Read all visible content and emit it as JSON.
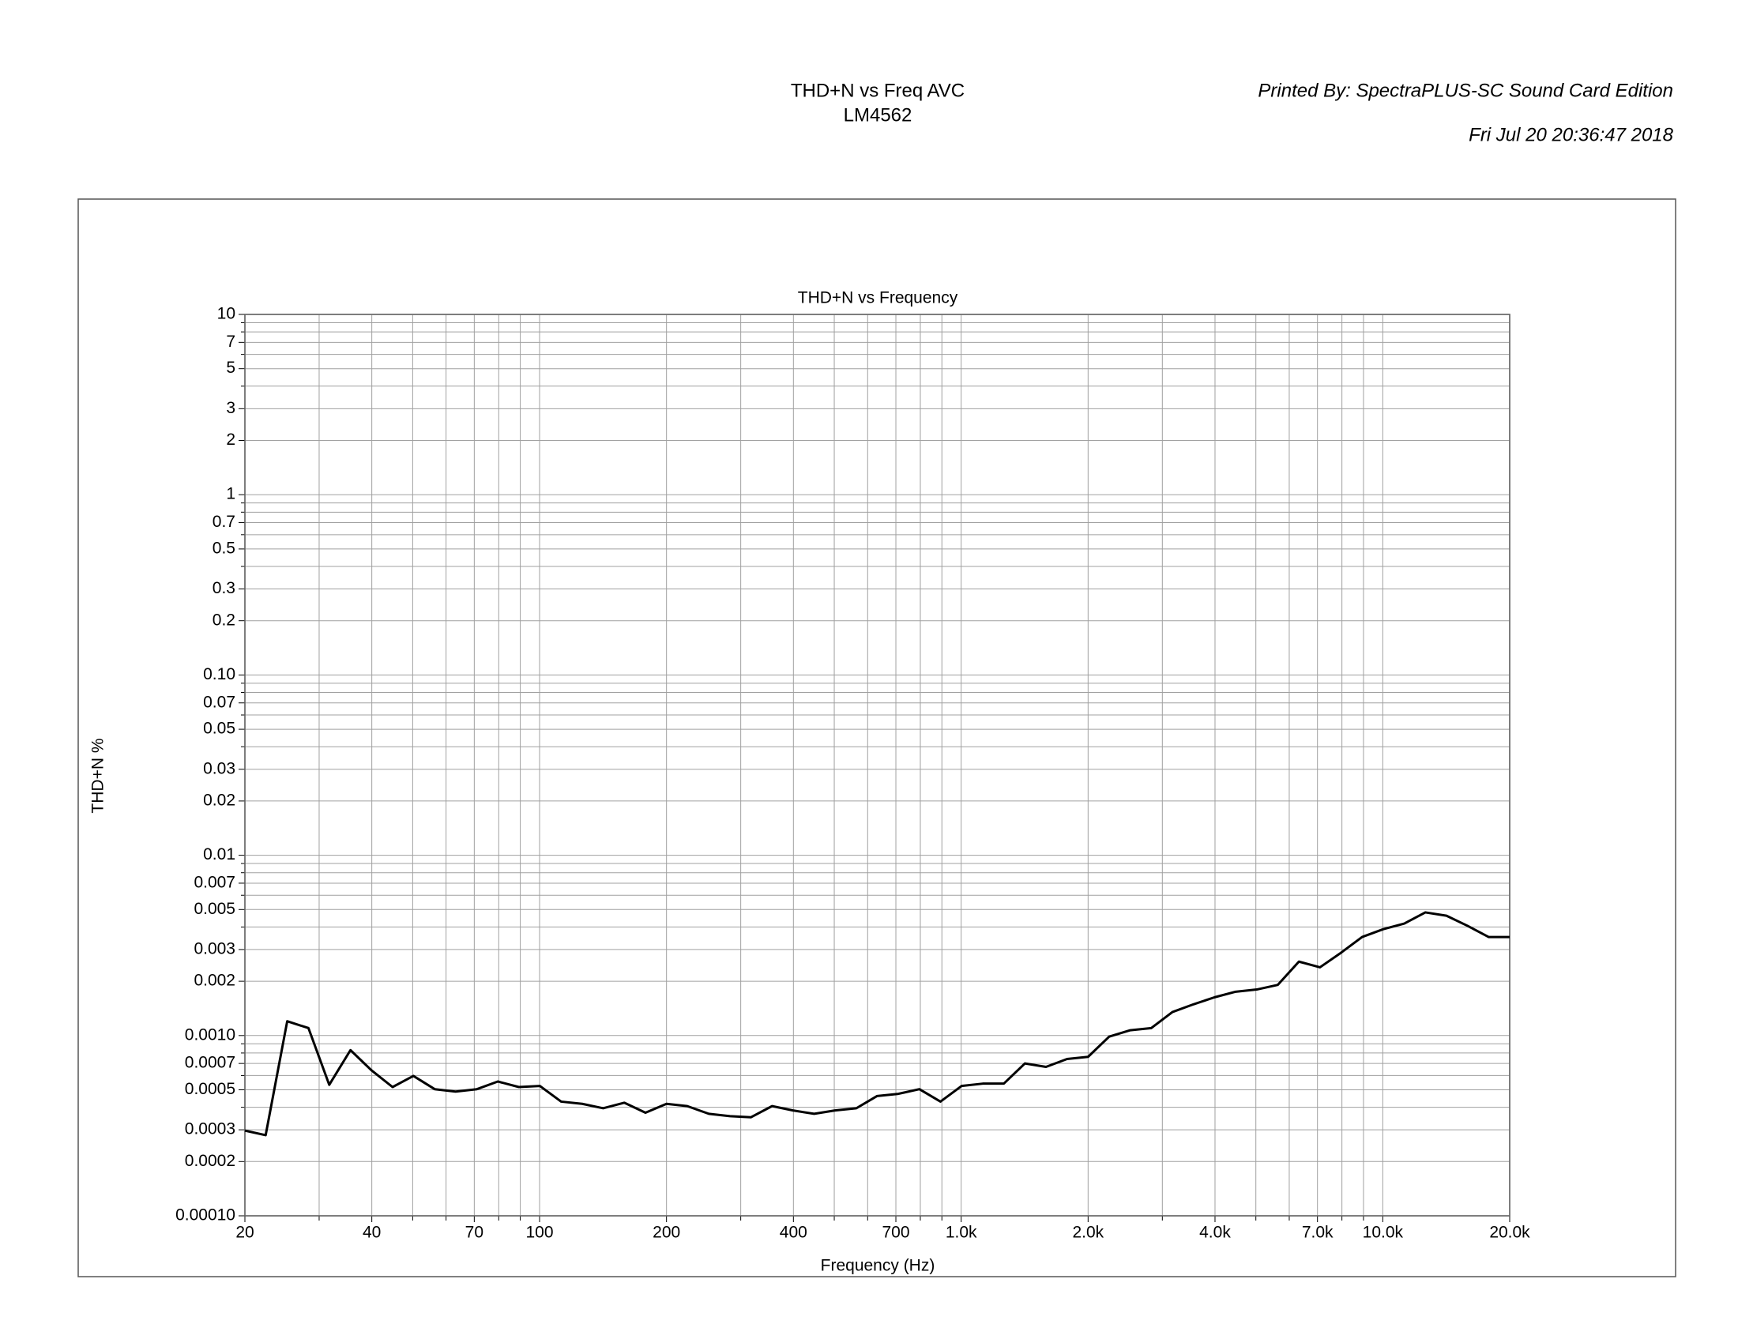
{
  "header": {
    "title": "THD+N vs Freq AVC",
    "subtitle": "LM4562",
    "printed_by": "Printed By: SpectraPLUS-SC Sound Card Edition",
    "date": "Fri Jul 20 20:36:47 2018"
  },
  "chart_data": {
    "type": "line",
    "title": "THD+N vs Frequency",
    "x_label": "Frequency (Hz)",
    "y_label": "THD+N %",
    "x_scale": "log",
    "y_scale": "log",
    "grid": true,
    "x": [
      20,
      22.4,
      25.2,
      28.3,
      31.7,
      35.6,
      39.9,
      44.8,
      50.2,
      56.4,
      63.2,
      71.0,
      79.6,
      89.3,
      100.2,
      112.5,
      126.2,
      141.6,
      158.9,
      178.3,
      200,
      224,
      252,
      283,
      317,
      356,
      399,
      448,
      502,
      564,
      632,
      710,
      796,
      893,
      1002,
      1125,
      1262,
      1416,
      1589,
      1783,
      2000,
      2244,
      2518,
      2825,
      3170,
      3557,
      3991,
      4477,
      5024,
      5637,
      6325,
      7096,
      7962,
      8934,
      10024,
      11247,
      12619,
      14159,
      15887,
      17825,
      20000
    ],
    "series": [
      {
        "name": "THD+N",
        "color": "#000000",
        "values": [
          0.000297,
          0.00028,
          0.0012,
          0.0011,
          0.000533,
          0.00083,
          0.000642,
          0.000518,
          0.000597,
          0.000504,
          0.000489,
          0.000504,
          0.000556,
          0.000518,
          0.000525,
          0.00043,
          0.000418,
          0.000395,
          0.000424,
          0.000373,
          0.000418,
          0.000406,
          0.000368,
          0.000357,
          0.000352,
          0.000406,
          0.000384,
          0.000368,
          0.000384,
          0.000395,
          0.000462,
          0.000475,
          0.000504,
          0.00043,
          0.000525,
          0.000541,
          0.000541,
          0.0007,
          0.00067,
          0.000741,
          0.000762,
          0.000986,
          0.00107,
          0.0011,
          0.00135,
          0.00149,
          0.00163,
          0.00175,
          0.0018,
          0.00191,
          0.00257,
          0.00239,
          0.00288,
          0.00352,
          0.00389,
          0.00418,
          0.00482,
          0.00462,
          0.00406,
          0.00352,
          0.00352
        ]
      }
    ],
    "xlim": [
      20,
      20000
    ],
    "xticks": [
      20,
      40,
      70,
      100,
      200,
      400,
      700,
      {
        "value": 1000,
        "label": "1.0k"
      },
      {
        "value": 2000,
        "label": "2.0k"
      },
      {
        "value": 4000,
        "label": "4.0k"
      },
      {
        "value": 7000,
        "label": "7.0k"
      },
      {
        "value": 10000,
        "label": "10.0k"
      },
      {
        "value": 20000,
        "label": "20.0k"
      }
    ],
    "x_minor_ticks": [
      30,
      50,
      60,
      80,
      90,
      300,
      500,
      600,
      800,
      900,
      3000,
      5000,
      6000,
      8000,
      9000
    ],
    "ylim": [
      0.0001,
      10
    ],
    "yticks": [
      10,
      7,
      5,
      3,
      2,
      1,
      0.7,
      0.5,
      0.3,
      0.2,
      {
        "value": 0.1,
        "label": "0.10"
      },
      0.07,
      0.05,
      0.03,
      0.02,
      0.01,
      0.007,
      0.005,
      0.003,
      0.002,
      {
        "value": 0.001,
        "label": "0.0010"
      },
      0.0007,
      0.0005,
      0.0003,
      0.0002,
      {
        "value": 0.0001,
        "label": "0.00010"
      }
    ],
    "y_minor_ticks": [
      0.0004,
      0.0006,
      0.0008,
      0.0009,
      0.004,
      0.006,
      0.008,
      0.009,
      0.04,
      0.06,
      0.08,
      0.09,
      0.4,
      0.6,
      0.8,
      0.9,
      4,
      6,
      8,
      9
    ]
  }
}
